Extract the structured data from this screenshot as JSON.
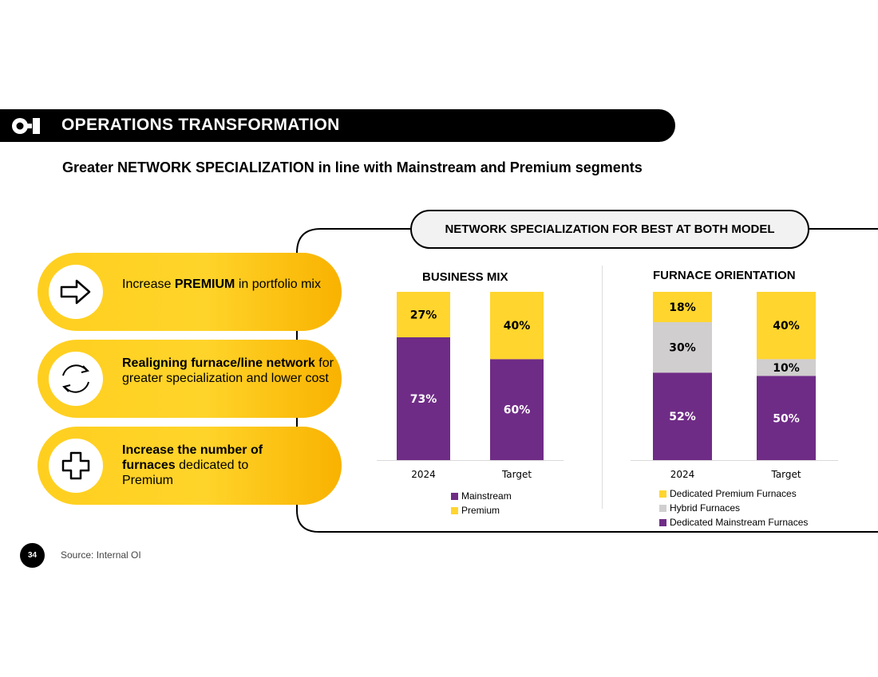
{
  "header": {
    "title": "OPERATIONS TRANSFORMATION",
    "logo_text": "O-I"
  },
  "subtitle": {
    "prefix": "Greater ",
    "emphasis": "NETWORK SPECIALIZATION",
    "suffix": " in line with Mainstream and Premium segments"
  },
  "panel_title": "NETWORK SPECIALIZATION FOR BEST AT BOTH MODEL",
  "pillars": [
    {
      "icon": "arrow-right-icon",
      "bold": "PREMIUM",
      "before": "Increase ",
      "after": " in portfolio mix"
    },
    {
      "icon": "refresh-cycle-icon",
      "bold": "Realigning furnace/line network",
      "before": "",
      "after": " for greater specialization and lower cost"
    },
    {
      "icon": "plus-cross-icon",
      "bold": "Increase the number of furnaces",
      "before": "",
      "after": " dedicated to Premium"
    }
  ],
  "colors": {
    "mainstream": "#6f2c86",
    "premium": "#ffd52e",
    "hybrid": "#d0cece",
    "accent": "#ffcf1f"
  },
  "chart_data": [
    {
      "type": "bar",
      "stacked": true,
      "title": "BUSINESS MIX",
      "categories": [
        "2024",
        "Target"
      ],
      "series": [
        {
          "name": "Mainstream",
          "values": [
            73,
            60
          ],
          "labels": [
            "73%",
            "60%"
          ]
        },
        {
          "name": "Premium",
          "values": [
            27,
            40
          ],
          "labels": [
            "27%",
            "40%"
          ]
        }
      ],
      "ylim": [
        0,
        100
      ],
      "legend": [
        "Mainstream",
        "Premium"
      ]
    },
    {
      "type": "bar",
      "stacked": true,
      "title": "FURNACE ORIENTATION",
      "categories": [
        "2024",
        "Target"
      ],
      "series": [
        {
          "name": "Dedicated Mainstream Furnaces",
          "values": [
            52,
            50
          ],
          "labels": [
            "52%",
            "50%"
          ]
        },
        {
          "name": "Hybrid Furnaces",
          "values": [
            30,
            10
          ],
          "labels": [
            "30%",
            "10%"
          ]
        },
        {
          "name": "Dedicated Premium Furnaces",
          "values": [
            18,
            40
          ],
          "labels": [
            "18%",
            "40%"
          ]
        }
      ],
      "ylim": [
        0,
        100
      ],
      "legend": [
        "Dedicated Premium Furnaces",
        "Hybrid Furnaces",
        "Dedicated Mainstream Furnaces"
      ]
    }
  ],
  "footer": {
    "page_number": "34",
    "source": "Source: Internal OI"
  }
}
